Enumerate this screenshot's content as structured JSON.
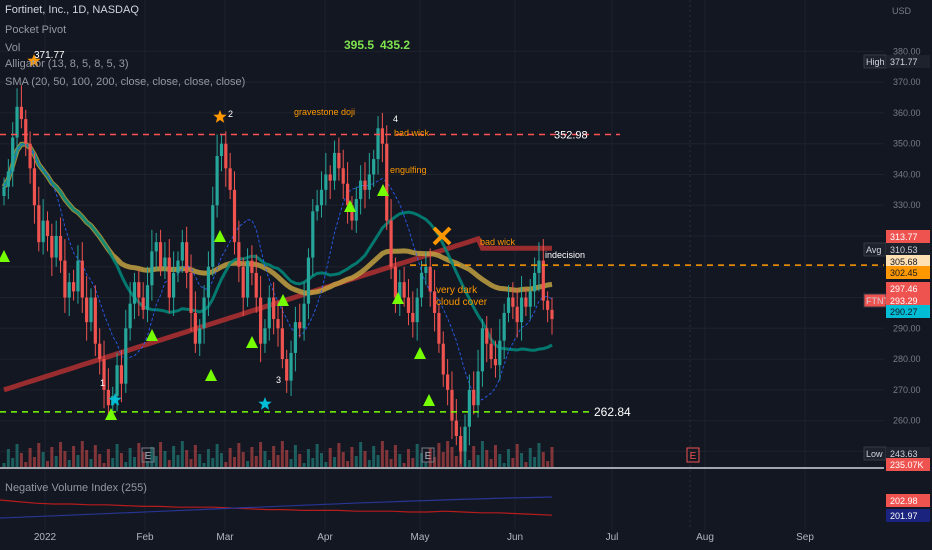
{
  "legend": {
    "title": "Fortinet, Inc., 1D, NASDAQ",
    "line2": "Pocket Pivot",
    "line3": "Vol",
    "line4": "Alligator (13, 8, 5, 8, 5, 3)",
    "line5": "SMA (20, 50, 100, 200, close, close, close, close)",
    "overlay_a": "395.5",
    "overlay_b": "435.2",
    "subpane": "Negative Volume Index (255)"
  },
  "colors": {
    "background": "#131722",
    "up": "#26a69a",
    "down": "#ef5350",
    "sma20": "#2962ff",
    "sma50": "#00897b",
    "sma100": "#c0a040",
    "sma200": "#b03030",
    "dashed_red": "#ff5252",
    "dashed_orange": "#ff9800",
    "dashed_green": "#76ff03",
    "nvi": "#b71c1c",
    "nvi_ema": "#283593"
  },
  "chart_data": {
    "type": "candlestick",
    "symbol": "FTNT",
    "ylim": [
      240,
      390
    ],
    "yticks": [
      250,
      260,
      270,
      280,
      290,
      300,
      310,
      320,
      330,
      340,
      350,
      360,
      370,
      380
    ],
    "y_unit_label": "USD",
    "x_ticks": [
      "2022",
      "Feb",
      "Mar",
      "Apr",
      "May",
      "Jun",
      "Jul",
      "Aug",
      "Sep"
    ],
    "price_labels": [
      {
        "text": "High",
        "value": "371.77"
      },
      {
        "text": "Avg",
        "value": "310.53"
      },
      {
        "text": "",
        "value": "313.77"
      },
      {
        "text": "",
        "value": "305.68"
      },
      {
        "text": "",
        "value": "302.45"
      },
      {
        "text": "",
        "value": "297.46"
      },
      {
        "text": "FTNT",
        "value": "293.29"
      },
      {
        "text": "",
        "value": "290.27"
      },
      {
        "text": "Low",
        "value": "243.63"
      },
      {
        "text": "",
        "value": "235.07K"
      }
    ],
    "levels": [
      {
        "value": 352.98,
        "label": "352.98",
        "color": "#ff5252"
      },
      {
        "value": 310.53,
        "label": "",
        "color": "#ff9800"
      },
      {
        "value": 262.84,
        "label": "262.84",
        "color": "#76ff03"
      }
    ],
    "annotations": [
      {
        "text": "371.77"
      },
      {
        "text": "gravestone doji"
      },
      {
        "text": "bad wick"
      },
      {
        "text": "engulfing"
      },
      {
        "text": "bad wick"
      },
      {
        "text": "indecision"
      },
      {
        "text": "very dark cloud cover"
      },
      {
        "text": "1"
      },
      {
        "text": "2"
      },
      {
        "text": "3"
      },
      {
        "text": "4"
      }
    ],
    "earnings_markers": [
      "E",
      "E",
      "E"
    ],
    "closes": [
      336,
      341,
      352,
      362,
      358,
      350,
      342,
      330,
      318,
      325,
      320,
      313,
      320,
      312,
      300,
      305,
      302,
      312,
      300,
      292,
      300,
      285,
      280,
      270,
      265,
      268,
      278,
      272,
      290,
      298,
      305,
      300,
      296,
      304,
      315,
      318,
      310,
      313,
      300,
      308,
      312,
      318,
      308,
      295,
      285,
      290,
      300,
      310,
      330,
      346,
      350,
      342,
      335,
      318,
      310,
      300,
      312,
      308,
      300,
      285,
      290,
      300,
      293,
      290,
      280,
      273,
      282,
      292,
      290,
      298,
      313,
      328,
      330,
      335,
      340,
      338,
      347,
      342,
      337,
      330,
      325,
      332,
      338,
      335,
      340,
      345,
      355,
      350,
      325,
      310,
      300,
      305,
      300,
      295,
      292,
      300,
      308,
      310,
      302,
      295,
      285,
      275,
      270,
      260,
      255,
      250,
      258,
      270,
      265,
      276,
      290,
      285,
      280,
      278,
      286,
      295,
      300,
      297,
      292,
      300,
      297,
      302,
      308,
      312,
      299,
      296,
      293
    ],
    "nvi_values": [
      60,
      58,
      56,
      55,
      55,
      54,
      54,
      53,
      52,
      52,
      51,
      51,
      51,
      50,
      49,
      48,
      48,
      47,
      47,
      47,
      46,
      46,
      46,
      45,
      45,
      46,
      45,
      44,
      44,
      43,
      42,
      41
    ],
    "volume_max": 100
  }
}
